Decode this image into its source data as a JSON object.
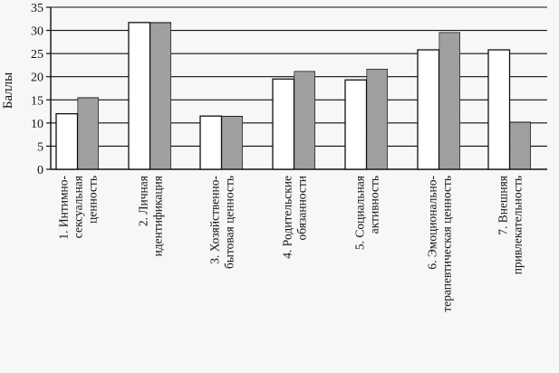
{
  "colors": {
    "series_1_fill": "#ffffff",
    "series_2_fill": "#a6a6a6",
    "stroke": "#111111",
    "grid": "#111111",
    "background": "#f7f7f5"
  },
  "chart_data": {
    "type": "bar",
    "title": "",
    "xlabel": "",
    "ylabel": "Баллы",
    "ylim": [
      0,
      35
    ],
    "yticks": [
      0,
      5,
      10,
      15,
      20,
      25,
      30,
      35
    ],
    "grid": "horizontal",
    "legend": "none",
    "categories": [
      [
        "1. Интимно-",
        "сексуальная",
        "ценность"
      ],
      [
        "2. Личная",
        "идентификация"
      ],
      [
        "3. Хозяйственно-",
        "бытовая ценность"
      ],
      [
        "4. Родительские",
        "обязанности"
      ],
      [
        "5. Социальная",
        "активность"
      ],
      [
        "6. Эмоционально-",
        "терапевтическая ценность"
      ],
      [
        "7. Внешняя",
        "привлекательность"
      ]
    ],
    "series": [
      {
        "values": [
          12,
          31.7,
          11.5,
          19.5,
          19.3,
          25.8,
          25.8
        ]
      },
      {
        "values": [
          15.5,
          31.7,
          11.5,
          21.2,
          21.7,
          29.6,
          10.2
        ]
      }
    ]
  }
}
